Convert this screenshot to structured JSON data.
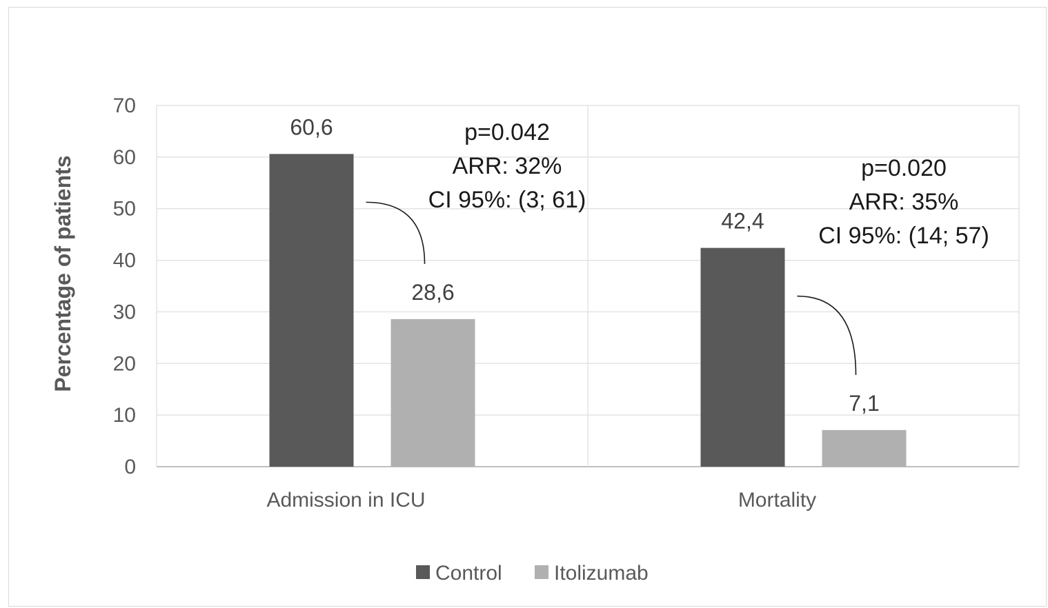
{
  "chart_data": {
    "type": "bar",
    "categories": [
      "Admission in ICU",
      "Mortality"
    ],
    "series": [
      {
        "name": "Control",
        "values": [
          60.6,
          42.4
        ],
        "labels": [
          "60,6",
          "42,4"
        ],
        "color": "#595959"
      },
      {
        "name": "Itolizumab",
        "values": [
          28.6,
          7.1
        ],
        "labels": [
          "28,6",
          "7,1"
        ],
        "color": "#b0b0b0"
      }
    ],
    "title": "",
    "xlabel": "",
    "ylabel": "Percentage of patients",
    "ylim": [
      0,
      70
    ],
    "yticks": [
      0,
      10,
      20,
      30,
      40,
      50,
      60,
      70
    ],
    "ytick_labels": [
      "0",
      "10",
      "20",
      "30",
      "40",
      "50",
      "60",
      "70"
    ],
    "grid": true,
    "legend_position": "bottom",
    "annotations": [
      {
        "category": "Admission in ICU",
        "lines": [
          "p=0.042",
          "ARR: 32%",
          "CI 95%: (3; 61)"
        ]
      },
      {
        "category": "Mortality",
        "lines": [
          "p=0.020",
          "ARR: 35%",
          "CI 95%: (14; 57)"
        ]
      }
    ]
  }
}
